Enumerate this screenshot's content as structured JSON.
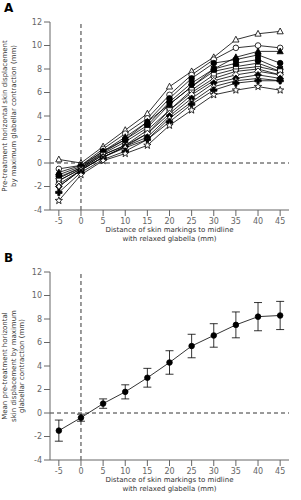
{
  "chart_data": [
    {
      "type": "line",
      "title": "A",
      "x_label": "Distance of skin markings to midline\nwith relaxed glabella (mm)",
      "y_label": "Pre-treatment horizontal skin displacement\nby maximum glabellar contraction (mm)",
      "x": [
        -5,
        0,
        5,
        10,
        15,
        20,
        25,
        30,
        35,
        40,
        45
      ],
      "xlim": [
        -7,
        47
      ],
      "xticks": [
        -5,
        0,
        5,
        10,
        15,
        20,
        25,
        30,
        35,
        40,
        45
      ],
      "ylim": [
        -4,
        12
      ],
      "yticks": [
        -4,
        -2,
        0,
        2,
        4,
        6,
        8,
        10,
        12
      ],
      "grid": false,
      "vlines": [
        0
      ],
      "hlines": [
        0
      ],
      "series": [
        {
          "color": "black",
          "marker": "open_triangle_up",
          "values": [
            0.3,
            0.0,
            1.4,
            2.8,
            4.2,
            6.5,
            7.8,
            9.0,
            10.5,
            11.0,
            11.2
          ]
        },
        {
          "color": "black",
          "marker": "open_circle",
          "values": [
            -0.5,
            -0.2,
            1.2,
            2.5,
            3.8,
            5.8,
            7.5,
            8.8,
            9.8,
            10.0,
            9.8
          ]
        },
        {
          "color": "black",
          "marker": "triangle_up",
          "values": [
            -0.8,
            -0.2,
            1.0,
            2.2,
            3.5,
            5.0,
            6.5,
            8.0,
            9.0,
            9.5,
            9.5
          ]
        },
        {
          "color": "black",
          "marker": "circle",
          "values": [
            -1.0,
            -0.3,
            1.0,
            2.0,
            3.5,
            5.5,
            7.2,
            8.5,
            8.8,
            9.2,
            8.5
          ]
        },
        {
          "color": "black",
          "marker": "square",
          "values": [
            -1.2,
            -0.4,
            0.9,
            2.0,
            3.2,
            5.2,
            6.8,
            8.0,
            8.5,
            8.8,
            8.0
          ]
        },
        {
          "color": "black",
          "marker": "triangle_down",
          "values": [
            -1.3,
            -0.4,
            0.8,
            1.8,
            3.0,
            5.0,
            6.5,
            7.8,
            8.2,
            8.5,
            7.8
          ]
        },
        {
          "color": "black",
          "marker": "open_square",
          "values": [
            -1.5,
            -0.5,
            0.7,
            1.5,
            2.8,
            4.5,
            6.2,
            7.5,
            8.0,
            8.2,
            7.8
          ]
        },
        {
          "color": "black",
          "marker": "open_triangle_down",
          "values": [
            -1.5,
            -0.5,
            0.7,
            1.5,
            2.5,
            4.5,
            6.0,
            7.2,
            7.8,
            8.0,
            7.5
          ]
        },
        {
          "color": "black",
          "marker": "open_diamond",
          "values": [
            -1.8,
            -0.6,
            0.5,
            1.4,
            2.5,
            4.2,
            5.8,
            7.0,
            7.5,
            7.8,
            7.5
          ]
        },
        {
          "color": "black",
          "marker": "diamond",
          "values": [
            -2.0,
            -0.6,
            0.5,
            1.4,
            2.2,
            4.0,
            5.5,
            6.8,
            7.2,
            7.5,
            7.2
          ]
        },
        {
          "color": "black",
          "marker": "open_thin_diamond",
          "values": [
            -2.0,
            -0.6,
            0.5,
            1.3,
            2.0,
            3.8,
            5.2,
            6.5,
            7.0,
            7.2,
            7.0
          ]
        },
        {
          "color": "black",
          "marker": "plus",
          "values": [
            -2.5,
            -0.8,
            0.3,
            1.0,
            2.0,
            3.5,
            5.0,
            6.2,
            6.8,
            7.0,
            7.0
          ]
        },
        {
          "color": "black",
          "marker": "open_star",
          "values": [
            -3.2,
            -1.0,
            0.2,
            0.8,
            1.5,
            3.2,
            4.5,
            5.8,
            6.2,
            6.5,
            6.2
          ]
        }
      ]
    },
    {
      "type": "line",
      "title": "B",
      "x_label": "Distance of skin markings to midline\nwith relaxed glabella (mm)",
      "y_label": "Mean pre-treatment horizontal\nskin displacement by maximum\nglabellar contraction (mm)",
      "x": [
        -5,
        0,
        5,
        10,
        15,
        20,
        25,
        30,
        35,
        40,
        45
      ],
      "xlim": [
        -7,
        47
      ],
      "xticks": [
        -5,
        0,
        5,
        10,
        15,
        20,
        25,
        30,
        35,
        40,
        45
      ],
      "ylim": [
        -4,
        12
      ],
      "yticks": [
        -4,
        -2,
        0,
        2,
        4,
        6,
        8,
        10,
        12
      ],
      "grid": false,
      "vlines": [
        0
      ],
      "hlines": [
        0
      ],
      "series": [
        {
          "color": "black",
          "marker": "circle",
          "values": [
            -1.5,
            -0.4,
            0.8,
            1.8,
            3.0,
            4.3,
            5.7,
            6.6,
            7.5,
            8.2,
            8.3
          ],
          "errors": [
            0.9,
            0.3,
            0.4,
            0.6,
            0.8,
            1.0,
            1.0,
            1.0,
            1.1,
            1.2,
            1.2
          ]
        }
      ]
    }
  ]
}
